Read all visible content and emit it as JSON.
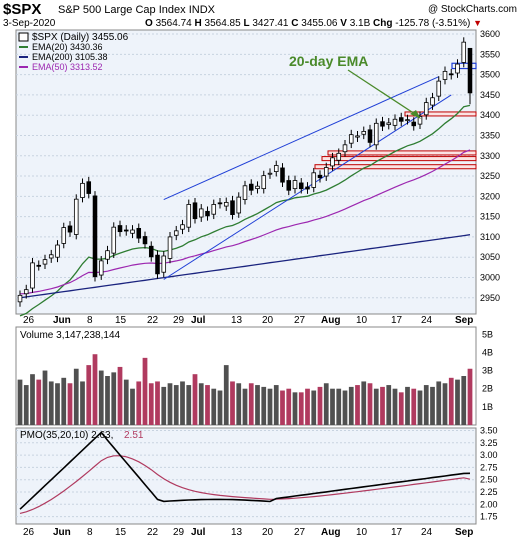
{
  "header": {
    "ticker": "$SPX",
    "name": "S&P 500 Large Cap Index",
    "exchange": "INDX",
    "date": "3-Sep-2020",
    "open_label": "O",
    "open": "3564.74",
    "high_label": "H",
    "high": "3564.85",
    "low_label": "L",
    "low": "3427.41",
    "close_label": "C",
    "close": "3455.06",
    "volume_label": "V",
    "volume": "3.1B",
    "change_label": "Chg",
    "change": "-125.78 (-3.51%)",
    "change_icon": "down-triangle-icon",
    "source": "@ StockCharts.com"
  },
  "colors": {
    "price_candle_down": "#000000",
    "ema20": "#2e7d32",
    "ema200": "#1a237e",
    "ema50": "#9c27b0",
    "trendline": "#1f3fd6",
    "annotation": "#4a8a2a",
    "zone_fill": "#fbe3e3",
    "zone_border": "#c00000",
    "volume_up": "#505050",
    "volume_down": "#b03a5f",
    "pmo": "#000000",
    "pmo_signal": "#b03a5f",
    "panel_bg": "#eef3fa"
  },
  "legend": {
    "price": "$SPX (Daily) 3455.06",
    "ema20": "EMA(20) 3430.36",
    "ema200": "EMA(200) 3105.38",
    "ema50": "EMA(50) 3313.52"
  },
  "annotation": "20-day EMA",
  "volume_label": "Volume 3,147,238,144",
  "pmo_label": "PMO(35,20,10) 2.63,",
  "pmo_signal_label": "2.51",
  "x_labels": [
    "26",
    "Jun",
    "8",
    "15",
    "22",
    "29",
    "Jul",
    "13",
    "20",
    "27",
    "Aug",
    "10",
    "17",
    "24",
    "Sep"
  ],
  "price_ticks": [
    "3600",
    "3550",
    "3500",
    "3450",
    "3400",
    "3350",
    "3300",
    "3250",
    "3200",
    "3150",
    "3100",
    "3050",
    "3000",
    "2950"
  ],
  "volume_ticks": [
    "5B",
    "4B",
    "3B",
    "2B",
    "1B"
  ],
  "pmo_ticks": [
    "3.50",
    "3.25",
    "3.00",
    "2.75",
    "2.50",
    "2.25",
    "2.00",
    "1.75"
  ],
  "chart_data": {
    "type": "candlestick",
    "title": "$SPX S&P 500 Large Cap Index INDX",
    "price_range": [
      2910,
      3610
    ],
    "close": [
      2956,
      2970,
      3036,
      3029,
      3044,
      3056,
      3080,
      3123,
      3112,
      3193,
      3232,
      3207,
      3002,
      3041,
      3066,
      3124,
      3113,
      3115,
      3117,
      3097,
      3083,
      3051,
      3009,
      3053,
      3100,
      3115,
      3130,
      3180,
      3145,
      3169,
      3152,
      3180,
      3182,
      3185,
      3155,
      3198,
      3226,
      3215,
      3225,
      3251,
      3257,
      3276,
      3235,
      3215,
      3239,
      3219,
      3218,
      3258,
      3246,
      3271,
      3295,
      3306,
      3327,
      3352,
      3349,
      3360,
      3333,
      3380,
      3373,
      3381,
      3390,
      3385,
      3389,
      3374,
      3397,
      3431,
      3443,
      3484,
      3508,
      3500,
      3526,
      3580,
      3455
    ],
    "volume_b": [
      2.5,
      2.2,
      2.8,
      2.5,
      3.0,
      2.4,
      2.3,
      2.6,
      2.3,
      3.1,
      2.4,
      3.3,
      3.9,
      3.0,
      2.7,
      2.9,
      3.2,
      2.5,
      2.0,
      2.4,
      3.7,
      2.3,
      2.4,
      2.1,
      2.3,
      2.2,
      2.4,
      2.2,
      2.8,
      2.3,
      2.2,
      2.0,
      1.9,
      3.3,
      2.4,
      2.3,
      2.0,
      2.3,
      2.2,
      2.1,
      2.0,
      2.2,
      1.9,
      2.0,
      1.8,
      1.8,
      2.0,
      1.9,
      2.1,
      2.3,
      2.0,
      2.0,
      1.9,
      2.1,
      2.2,
      2.4,
      2.3,
      2.0,
      2.1,
      2.2,
      2.0,
      1.8,
      2.1,
      2.0,
      1.9,
      2.2,
      2.1,
      2.4,
      2.3,
      2.6,
      2.5,
      2.7,
      3.1
    ],
    "ema20_last": 3430.36,
    "ema50_last": 3313.52,
    "ema200_last": 3105.38,
    "pmo_last": 2.63,
    "pmo_signal_last": 2.51,
    "pmo_range": [
      1.6,
      3.55
    ],
    "volume_range_b": [
      0,
      5.4
    ]
  }
}
